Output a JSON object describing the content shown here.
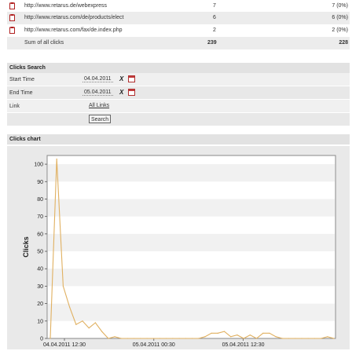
{
  "url_table": {
    "rows": [
      {
        "url": "http://www.retarus.de/webexpress",
        "clicks": "7",
        "unique": "7 (0%)"
      },
      {
        "url": "http://www.retarus.com/de/products/elect",
        "clicks": "6",
        "unique": "6 (0%)"
      },
      {
        "url": "http://www.retarus.com/fax/de.index.php",
        "clicks": "2",
        "unique": "2 (0%)"
      }
    ],
    "sum_label": "Sum of all clicks",
    "sum_clicks": "239",
    "sum_unique": "228"
  },
  "clicks_search": {
    "title": "Clicks Search",
    "start_label": "Start Time",
    "start_value": "04.04.2011",
    "end_label": "End Time",
    "end_value": "05.04.2011",
    "link_label": "Link",
    "link_value": "All Links",
    "search_button": "Search",
    "clear_glyph": "X"
  },
  "clicks_chart": {
    "title": "Clicks chart"
  },
  "chart_data": {
    "type": "line",
    "ylabel": "Clicks",
    "ylim": [
      0,
      105
    ],
    "yticks": [
      0,
      10,
      20,
      30,
      40,
      50,
      60,
      70,
      80,
      90,
      100
    ],
    "xtick_labels": [
      "04.04.2011 12:30",
      "05.04.2011 00:30",
      "05.04.2011 12:30"
    ],
    "grid": "horizontal bands",
    "line_color": "#e0b060",
    "series": [
      {
        "values": [
          0,
          103,
          30,
          18,
          8,
          10,
          6,
          9,
          4,
          0,
          1,
          0,
          0,
          0,
          0,
          0,
          0,
          0,
          0,
          0,
          0,
          0,
          0,
          0,
          1,
          3,
          3,
          4,
          1,
          2,
          0,
          2,
          0,
          3,
          3,
          1,
          0,
          0,
          0,
          0,
          0,
          0,
          0,
          1,
          0
        ]
      }
    ]
  }
}
